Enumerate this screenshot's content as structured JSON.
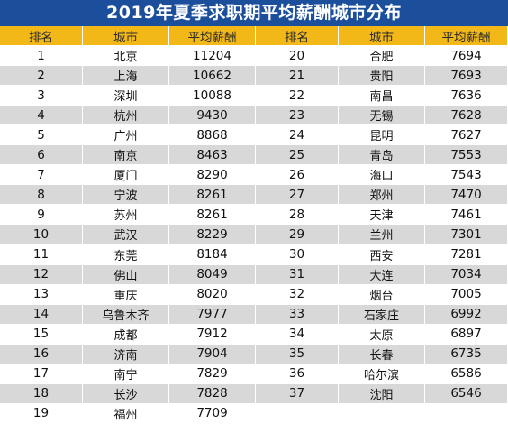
{
  "chart_data": {
    "type": "table",
    "title": "2019年夏季求职期平均薪酬城市分布",
    "headers": [
      "排名",
      "城市",
      "平均薪酬",
      "排名",
      "城市",
      "平均薪酬"
    ],
    "rows": [
      {
        "rank": "1",
        "city": "北京",
        "salary": "11204"
      },
      {
        "rank": "2",
        "city": "上海",
        "salary": "10662"
      },
      {
        "rank": "3",
        "city": "深圳",
        "salary": "10088"
      },
      {
        "rank": "4",
        "city": "杭州",
        "salary": "9430"
      },
      {
        "rank": "5",
        "city": "广州",
        "salary": "8868"
      },
      {
        "rank": "6",
        "city": "南京",
        "salary": "8463"
      },
      {
        "rank": "7",
        "city": "厦门",
        "salary": "8290"
      },
      {
        "rank": "8",
        "city": "宁波",
        "salary": "8261"
      },
      {
        "rank": "9",
        "city": "苏州",
        "salary": "8261"
      },
      {
        "rank": "10",
        "city": "武汉",
        "salary": "8229"
      },
      {
        "rank": "11",
        "city": "东莞",
        "salary": "8184"
      },
      {
        "rank": "12",
        "city": "佛山",
        "salary": "8049"
      },
      {
        "rank": "13",
        "city": "重庆",
        "salary": "8020"
      },
      {
        "rank": "14",
        "city": "乌鲁木齐",
        "salary": "7977"
      },
      {
        "rank": "15",
        "city": "成都",
        "salary": "7912"
      },
      {
        "rank": "16",
        "city": "济南",
        "salary": "7904"
      },
      {
        "rank": "17",
        "city": "南宁",
        "salary": "7829"
      },
      {
        "rank": "18",
        "city": "长沙",
        "salary": "7828"
      },
      {
        "rank": "19",
        "city": "福州",
        "salary": "7709"
      },
      {
        "rank": "20",
        "city": "合肥",
        "salary": "7694"
      },
      {
        "rank": "21",
        "city": "贵阳",
        "salary": "7693"
      },
      {
        "rank": "22",
        "city": "南昌",
        "salary": "7636"
      },
      {
        "rank": "23",
        "city": "无锡",
        "salary": "7628"
      },
      {
        "rank": "24",
        "city": "昆明",
        "salary": "7627"
      },
      {
        "rank": "25",
        "city": "青岛",
        "salary": "7553"
      },
      {
        "rank": "26",
        "city": "海口",
        "salary": "7543"
      },
      {
        "rank": "27",
        "city": "郑州",
        "salary": "7470"
      },
      {
        "rank": "28",
        "city": "天津",
        "salary": "7461"
      },
      {
        "rank": "29",
        "city": "兰州",
        "salary": "7301"
      },
      {
        "rank": "30",
        "city": "西安",
        "salary": "7281"
      },
      {
        "rank": "31",
        "city": "大连",
        "salary": "7034"
      },
      {
        "rank": "32",
        "city": "烟台",
        "salary": "7005"
      },
      {
        "rank": "33",
        "city": "石家庄",
        "salary": "6992"
      },
      {
        "rank": "34",
        "city": "太原",
        "salary": "6897"
      },
      {
        "rank": "35",
        "city": "长春",
        "salary": "6735"
      },
      {
        "rank": "36",
        "city": "哈尔滨",
        "salary": "6586"
      },
      {
        "rank": "37",
        "city": "沈阳",
        "salary": "6546"
      }
    ]
  },
  "colors": {
    "title_bg": "#1b4f9c",
    "header_bg": "#f2b818",
    "row_stripe": "#d8d8d8"
  }
}
